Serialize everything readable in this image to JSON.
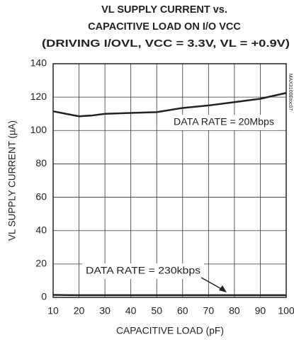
{
  "chart_data": {
    "type": "line",
    "title": [
      "VL SUPPLY CURRENT vs.",
      "CAPACITIVE LOAD ON I/O VCC",
      "(DRIVING I/OVL, VCC = 3.3V, VL = +0.9V)"
    ],
    "xlabel": "CAPACITIVE LOAD (pF)",
    "ylabel": "VL SUPPLY CURRENT (µA)",
    "xlim": [
      10,
      100
    ],
    "ylim": [
      0,
      140
    ],
    "xticks": [
      10,
      20,
      30,
      40,
      50,
      60,
      70,
      80,
      90,
      100
    ],
    "yticks": [
      0,
      20,
      40,
      60,
      80,
      100,
      120,
      140
    ],
    "grid": true,
    "x": [
      10,
      15,
      20,
      25,
      30,
      40,
      50,
      60,
      70,
      80,
      90,
      100
    ],
    "series": [
      {
        "name": "DATA RATE = 20Mbps",
        "color": "#222222",
        "values": [
          111.5,
          110,
          108.5,
          109,
          110,
          110.5,
          111,
          113.5,
          115,
          117,
          119,
          122.5
        ]
      },
      {
        "name": "DATA RATE = 230kbps",
        "color": "#222222",
        "values": [
          1.5,
          1.4,
          1.3,
          1.3,
          1.3,
          1.3,
          1.3,
          1.3,
          1.3,
          1.3,
          1.3,
          1.3
        ]
      }
    ],
    "watermark": "MAX3100Etoc07"
  }
}
